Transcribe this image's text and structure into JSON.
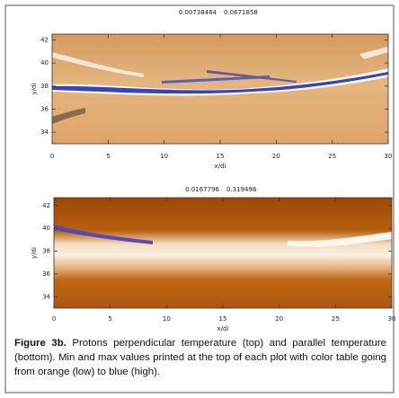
{
  "figure": {
    "panels": [
      {
        "title": [
          "0.00738484",
          "0.0671858"
        ],
        "xlabel": "x/di",
        "ylabel": "y/di",
        "xlim": [
          0,
          30
        ],
        "ylim": [
          33,
          42.5
        ],
        "xticks": [
          0,
          5,
          10,
          15,
          20,
          25,
          30
        ],
        "yticks": [
          34,
          36,
          38,
          40,
          42
        ]
      },
      {
        "title": [
          "0.0167796",
          "0.319496"
        ],
        "xlabel": "x/di",
        "ylabel": "y/di",
        "xlim": [
          0,
          30
        ],
        "ylim": [
          33,
          42.7
        ],
        "xticks": [
          0,
          5,
          10,
          15,
          20,
          25,
          30
        ],
        "yticks": [
          34,
          36,
          38,
          40,
          42
        ]
      }
    ],
    "caption": {
      "label": "Figure 3b.",
      "text": "Protons perpendicular temperature (top) and parallel temperature (bottom). Min and max values printed at the top of each plot with color table going from orange (low) to blue (high)."
    }
  }
}
